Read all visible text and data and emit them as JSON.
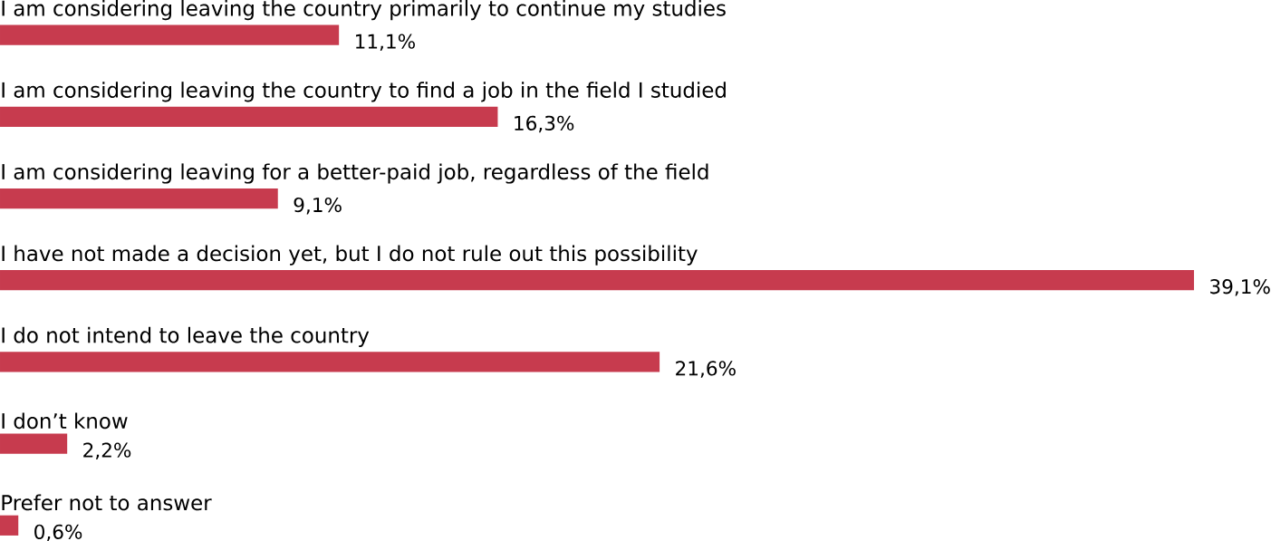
{
  "chart_data": {
    "type": "bar",
    "orientation": "horizontal",
    "color": "#c73b4e",
    "categories": [
      "I am considering leaving the country primarily to continue my studies",
      "I am considering leaving the country to find a job in the field I studied",
      "I am considering leaving for a better-paid job, regardless of the field",
      "I have not made a decision yet, but I do not rule out this possibility",
      "I do not intend to leave the country",
      "I don’t know",
      "Prefer not to answer"
    ],
    "values": [
      11.1,
      16.3,
      9.1,
      39.1,
      21.6,
      2.2,
      0.6
    ],
    "value_labels": [
      "11,1%",
      "16,3%",
      "9,1%",
      "39,1%",
      "21,6%",
      "2,2%",
      "0,6%"
    ]
  }
}
